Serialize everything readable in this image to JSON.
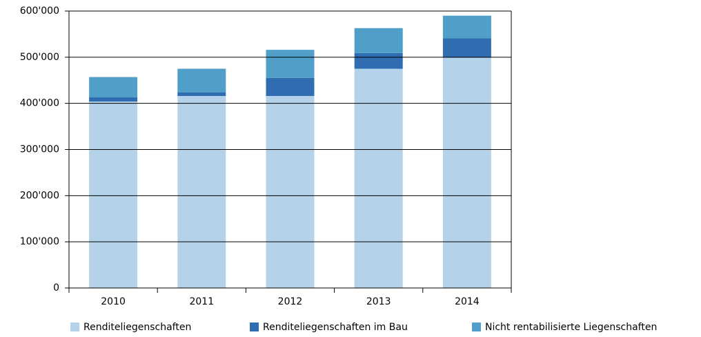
{
  "chart_data": {
    "type": "stacked_bar",
    "categories": [
      "2010",
      "2011",
      "2012",
      "2013",
      "2014"
    ],
    "series": [
      {
        "name": "Renditeliegenschaften",
        "color": "#b4d3ea",
        "values": [
          404000,
          416000,
          416000,
          475000,
          499000
        ]
      },
      {
        "name": "Renditeliegenschaften im Bau",
        "color": "#2f6cb0",
        "values": [
          9000,
          8000,
          39000,
          34000,
          42000
        ]
      },
      {
        "name": "Nicht rentabilisierte Liegenschaften",
        "color": "#4f9fc8",
        "values": [
          44000,
          51000,
          61000,
          54000,
          49000
        ]
      }
    ],
    "ylim": [
      0,
      600000
    ],
    "yticks": [
      0,
      {
        "value": 100000,
        "label": "100'000"
      },
      {
        "value": 200000,
        "label": "200'000"
      },
      {
        "value": 300000,
        "label": "300'000"
      },
      {
        "value": 400000,
        "label": "400'000"
      },
      {
        "value": 500000,
        "label": "500'000"
      },
      {
        "value": 600000,
        "label": "600'000"
      }
    ],
    "grid": true
  }
}
